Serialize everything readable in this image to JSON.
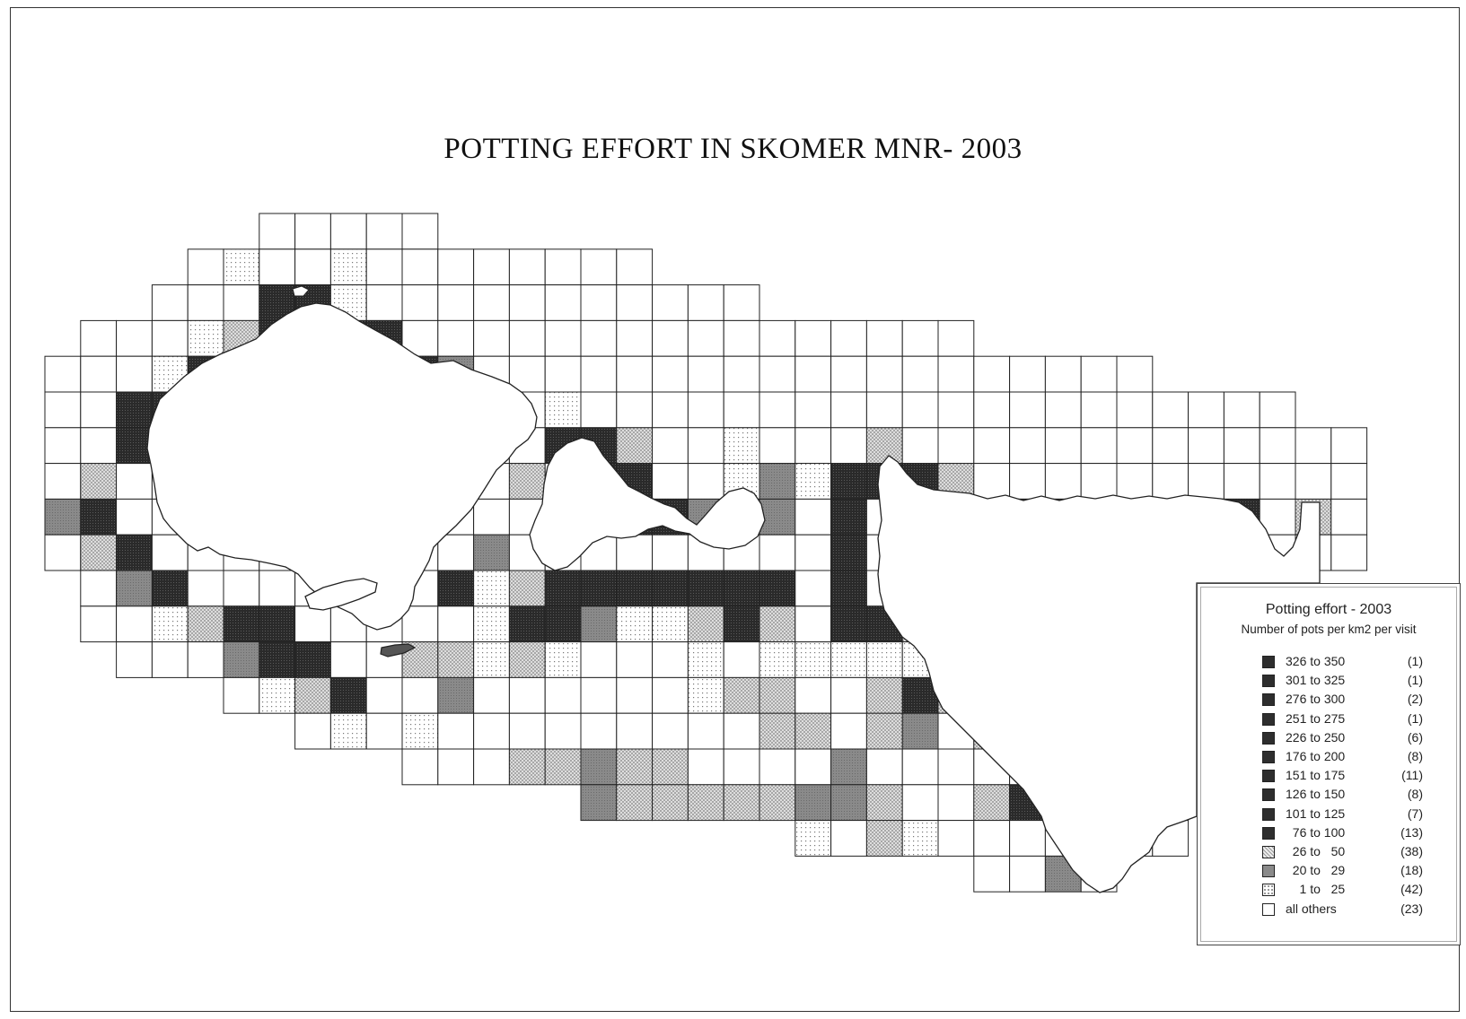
{
  "title": "POTTING EFFORT IN SKOMER MNR- 2003",
  "legend": {
    "title": "Potting effort - 2003",
    "subtitle": "Number of pots per km2 per visit",
    "items": [
      {
        "range": "326 to 350",
        "count": "(1)",
        "pattern": "dark"
      },
      {
        "range": "301 to 325",
        "count": "(1)",
        "pattern": "dark"
      },
      {
        "range": "276 to 300",
        "count": "(2)",
        "pattern": "dark"
      },
      {
        "range": "251 to 275",
        "count": "(1)",
        "pattern": "dark"
      },
      {
        "range": "226 to 250",
        "count": "(6)",
        "pattern": "dark"
      },
      {
        "range": "176 to 200",
        "count": "(8)",
        "pattern": "dark"
      },
      {
        "range": "151 to 175",
        "count": "(11)",
        "pattern": "dark"
      },
      {
        "range": "126 to 150",
        "count": "(8)",
        "pattern": "dark"
      },
      {
        "range": "101 to 125",
        "count": "(7)",
        "pattern": "dark"
      },
      {
        "range": "  76 to 100",
        "count": "(13)",
        "pattern": "dark"
      },
      {
        "range": "  26 to   50",
        "count": "(38)",
        "pattern": "cross"
      },
      {
        "range": "  20 to   29",
        "count": "(18)",
        "pattern": "mid"
      },
      {
        "range": "    1 to   25",
        "count": "(42)",
        "pattern": "dots"
      },
      {
        "range": "all others",
        "count": "(23)",
        "pattern": "white"
      }
    ]
  },
  "colors": {
    "dark": "#2e2e2e",
    "mid": "#8a8a8a",
    "cross": "#d6d6d6",
    "dots": "#f0f0f0",
    "white": "#ffffff",
    "line": "#222222"
  },
  "grid": {
    "rows": [
      {
        "row": 0,
        "cols": "7-11"
      },
      {
        "row": 1,
        "cols": "5-17"
      },
      {
        "row": 2,
        "cols": "4-20"
      },
      {
        "row": 3,
        "cols": "2-26"
      },
      {
        "row": 4,
        "cols": "1-31"
      },
      {
        "row": 5,
        "cols": "1-35"
      },
      {
        "row": 6,
        "cols": "1-37"
      },
      {
        "row": 7,
        "cols": "1-37"
      },
      {
        "row": 8,
        "cols": "1-37"
      },
      {
        "row": 9,
        "cols": "1-37"
      },
      {
        "row": 10,
        "cols": "2-32"
      },
      {
        "row": 11,
        "cols": "2-32"
      },
      {
        "row": 12,
        "cols": "3-32"
      },
      {
        "row": 13,
        "cols": "6-32"
      },
      {
        "row": 14,
        "cols": "8-32"
      },
      {
        "row": 15,
        "cols": "11-32"
      },
      {
        "row": 16,
        "cols": "16-32"
      },
      {
        "row": 17,
        "cols": "22-32"
      },
      {
        "row": 18,
        "cols": "27-30"
      }
    ],
    "cells": [
      [
        "1,6",
        "dots"
      ],
      [
        "2,7",
        "dark"
      ],
      [
        "2,8",
        "dark"
      ],
      [
        "2,9",
        "dots"
      ],
      [
        "1,9",
        "dots"
      ],
      [
        "3,5",
        "dots"
      ],
      [
        "3,6",
        "cross"
      ],
      [
        "3,7",
        "dark"
      ],
      [
        "3,8",
        "dark"
      ],
      [
        "3,9",
        "dark"
      ],
      [
        "3,10",
        "dark"
      ],
      [
        "4,4",
        "dots"
      ],
      [
        "4,5",
        "dark"
      ],
      [
        "4,6",
        "dark"
      ],
      [
        "4,11",
        "dark"
      ],
      [
        "4,12",
        "mid"
      ],
      [
        "5,3",
        "dark"
      ],
      [
        "5,4",
        "dark"
      ],
      [
        "5,5",
        "dark"
      ],
      [
        "5,13",
        "cross"
      ],
      [
        "5,15",
        "dots"
      ],
      [
        "6,3",
        "dark"
      ],
      [
        "6,15",
        "dark"
      ],
      [
        "6,16",
        "dark"
      ],
      [
        "6,17",
        "cross"
      ],
      [
        "6,20",
        "dots"
      ],
      [
        "6,24",
        "cross"
      ],
      [
        "7,2",
        "cross"
      ],
      [
        "7,14",
        "cross"
      ],
      [
        "7,16",
        "dark"
      ],
      [
        "7,17",
        "dark"
      ],
      [
        "7,20",
        "dots"
      ],
      [
        "7,21",
        "mid"
      ],
      [
        "7,22",
        "dots"
      ],
      [
        "7,23",
        "dark"
      ],
      [
        "7,24",
        "dark"
      ],
      [
        "7,25",
        "dark"
      ],
      [
        "7,26",
        "cross"
      ],
      [
        "8,1",
        "mid"
      ],
      [
        "8,2",
        "dark"
      ],
      [
        "8,17",
        "dark"
      ],
      [
        "8,18",
        "dark"
      ],
      [
        "8,19",
        "mid"
      ],
      [
        "8,21",
        "mid"
      ],
      [
        "8,23",
        "dark"
      ],
      [
        "8,27",
        "dots"
      ],
      [
        "8,28",
        "dark"
      ],
      [
        "8,29",
        "dark"
      ],
      [
        "8,30",
        "dark"
      ],
      [
        "8,31",
        "dark"
      ],
      [
        "8,32",
        "dark"
      ],
      [
        "8,33",
        "dark"
      ],
      [
        "8,34",
        "dark"
      ],
      [
        "8,36",
        "cross"
      ],
      [
        "9,2",
        "cross"
      ],
      [
        "9,3",
        "dark"
      ],
      [
        "9,13",
        "mid"
      ],
      [
        "9,23",
        "dark"
      ],
      [
        "10,3",
        "mid"
      ],
      [
        "10,4",
        "dark"
      ],
      [
        "10,12",
        "dark"
      ],
      [
        "10,13",
        "dots"
      ],
      [
        "10,14",
        "cross"
      ],
      [
        "10,15",
        "dark"
      ],
      [
        "10,16",
        "dark"
      ],
      [
        "10,17",
        "dark"
      ],
      [
        "10,18",
        "dark"
      ],
      [
        "10,19",
        "dark"
      ],
      [
        "10,20",
        "dark"
      ],
      [
        "10,21",
        "dark"
      ],
      [
        "10,23",
        "dark"
      ],
      [
        "11,4",
        "dots"
      ],
      [
        "11,5",
        "cross"
      ],
      [
        "11,6",
        "dark"
      ],
      [
        "11,7",
        "dark"
      ],
      [
        "11,13",
        "dots"
      ],
      [
        "11,14",
        "dark"
      ],
      [
        "11,15",
        "dark"
      ],
      [
        "11,16",
        "mid"
      ],
      [
        "11,17",
        "dots"
      ],
      [
        "11,18",
        "dots"
      ],
      [
        "11,19",
        "cross"
      ],
      [
        "11,20",
        "dark"
      ],
      [
        "11,21",
        "cross"
      ],
      [
        "11,23",
        "dark"
      ],
      [
        "11,24",
        "dark"
      ],
      [
        "11,25",
        "cross"
      ],
      [
        "11,26",
        "cross"
      ],
      [
        "12,6",
        "mid"
      ],
      [
        "12,7",
        "dark"
      ],
      [
        "12,8",
        "dark"
      ],
      [
        "12,11",
        "cross"
      ],
      [
        "12,12",
        "cross"
      ],
      [
        "12,13",
        "dots"
      ],
      [
        "12,14",
        "cross"
      ],
      [
        "12,15",
        "dots"
      ],
      [
        "12,19",
        "dots"
      ],
      [
        "12,21",
        "dots"
      ],
      [
        "12,22",
        "dots"
      ],
      [
        "12,23",
        "dots"
      ],
      [
        "12,24",
        "dots"
      ],
      [
        "12,25",
        "dots"
      ],
      [
        "12,26",
        "cross"
      ],
      [
        "13,7",
        "dots"
      ],
      [
        "13,8",
        "cross"
      ],
      [
        "13,9",
        "dark"
      ],
      [
        "13,12",
        "mid"
      ],
      [
        "13,19",
        "dots"
      ],
      [
        "13,20",
        "cross"
      ],
      [
        "13,21",
        "cross"
      ],
      [
        "13,24",
        "cross"
      ],
      [
        "13,25",
        "dark"
      ],
      [
        "13,26",
        "cross"
      ],
      [
        "14,9",
        "dots"
      ],
      [
        "14,11",
        "dots"
      ],
      [
        "14,21",
        "cross"
      ],
      [
        "14,22",
        "cross"
      ],
      [
        "14,24",
        "cross"
      ],
      [
        "14,25",
        "mid"
      ],
      [
        "14,27",
        "cross"
      ],
      [
        "15,14",
        "cross"
      ],
      [
        "15,15",
        "cross"
      ],
      [
        "15,16",
        "mid"
      ],
      [
        "15,17",
        "cross"
      ],
      [
        "15,18",
        "cross"
      ],
      [
        "15,23",
        "mid"
      ],
      [
        "15,29",
        "cross"
      ],
      [
        "16,13",
        "dots"
      ],
      [
        "16,14",
        "dots"
      ],
      [
        "16,15",
        "dots"
      ],
      [
        "16,16",
        "mid"
      ],
      [
        "16,17",
        "cross"
      ],
      [
        "16,18",
        "cross"
      ],
      [
        "16,19",
        "cross"
      ],
      [
        "16,20",
        "cross"
      ],
      [
        "16,21",
        "cross"
      ],
      [
        "16,22",
        "mid"
      ],
      [
        "16,23",
        "mid"
      ],
      [
        "16,24",
        "cross"
      ],
      [
        "16,27",
        "cross"
      ],
      [
        "16,28",
        "dark"
      ],
      [
        "16,29",
        "dark"
      ],
      [
        "17,19",
        "dots"
      ],
      [
        "17,22",
        "dots"
      ],
      [
        "17,24",
        "cross"
      ],
      [
        "17,25",
        "dots"
      ],
      [
        "18,25",
        "mid"
      ],
      [
        "18,29",
        "mid"
      ],
      [
        "18,31",
        "dots"
      ],
      [
        "19,28",
        "cross"
      ],
      [
        "19,29",
        "dots"
      ],
      [
        "19,30",
        "cross"
      ]
    ]
  }
}
